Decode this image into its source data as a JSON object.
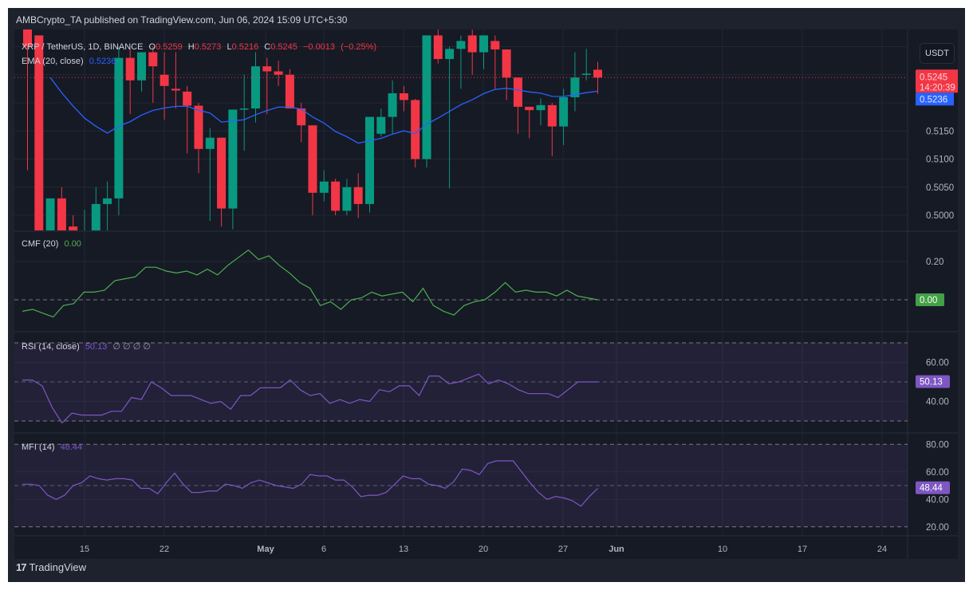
{
  "header": {
    "published": "AMBCrypto_TA published on TradingView.com, Jun 06, 2024 15:09 UTC+5:30"
  },
  "symbol": {
    "title": "XRP / TetherUS, 1D, BINANCE",
    "o_label": "O",
    "o": "0.5259",
    "h_label": "H",
    "h": "0.5273",
    "l_label": "L",
    "l": "0.5216",
    "c_label": "C",
    "c": "0.5245",
    "change": "−0.0013",
    "change_pct": "(−0.25%)"
  },
  "ema": {
    "label": "EMA (20, close)",
    "value": "0.5236"
  },
  "currency_button": "USDT",
  "price_axis": {
    "labels": [
      "0.5150",
      "0.5100",
      "0.5050",
      "0.5000"
    ],
    "last_price": "0.5245",
    "countdown": "14:20:39",
    "ema_tag": "0.5236"
  },
  "cmf": {
    "label": "CMF (20)",
    "value": "0.00",
    "axis": [
      "0.20"
    ],
    "tag": "0.00"
  },
  "rsi": {
    "label": "RSI (14, close)",
    "value": "50.13",
    "extras": "∅ ∅ ∅ ∅",
    "axis": [
      "60.00",
      "40.00"
    ],
    "tag": "50.13"
  },
  "mfi": {
    "label": "MFI (14)",
    "value": "48.44",
    "axis": [
      "80.00",
      "60.00",
      "40.00",
      "20.00"
    ],
    "tag": "48.44"
  },
  "time_axis": [
    "15",
    "22",
    "May",
    "6",
    "13",
    "20",
    "27",
    "Jun",
    "10",
    "17",
    "24"
  ],
  "footer": {
    "brand": "TradingView",
    "logo": "17"
  },
  "colors": {
    "up": "#089981",
    "down": "#f23645",
    "ema": "#2962ff",
    "cmf": "#4caf50",
    "rsi": "#7e57c2",
    "mfi": "#7e57c2",
    "bg": "#161a25",
    "grid": "#232733"
  },
  "chart_data": [
    {
      "type": "candlestick",
      "title": "XRP / TetherUS, 1D, BINANCE",
      "xlabel": "",
      "ylabel": "USDT",
      "ylim": [
        0.4975,
        0.531
      ],
      "x_ticks": [
        "15",
        "22",
        "May",
        "6",
        "13",
        "20",
        "27",
        "Jun",
        "10",
        "17",
        "24"
      ],
      "start_date": "2024-04-10",
      "candles": [
        {
          "o": 0.544,
          "h": 0.547,
          "l": 0.508,
          "c": 0.53
        },
        {
          "o": 0.532,
          "h": 0.53,
          "l": 0.496,
          "c": 0.496
        },
        {
          "o": 0.496,
          "h": 0.503,
          "l": 0.496,
          "c": 0.503
        },
        {
          "o": 0.503,
          "h": 0.505,
          "l": 0.496,
          "c": 0.496
        },
        {
          "o": 0.498,
          "h": 0.5,
          "l": 0.496,
          "c": 0.497
        },
        {
          "o": 0.497,
          "h": 0.501,
          "l": 0.496,
          "c": 0.497
        },
        {
          "o": 0.497,
          "h": 0.505,
          "l": 0.496,
          "c": 0.502
        },
        {
          "o": 0.502,
          "h": 0.506,
          "l": 0.497,
          "c": 0.503
        },
        {
          "o": 0.503,
          "h": 0.53,
          "l": 0.5,
          "c": 0.528
        },
        {
          "o": 0.528,
          "h": 0.5295,
          "l": 0.518,
          "c": 0.524
        },
        {
          "o": 0.524,
          "h": 0.529,
          "l": 0.522,
          "c": 0.529
        },
        {
          "o": 0.529,
          "h": 0.53,
          "l": 0.52,
          "c": 0.5265
        },
        {
          "o": 0.525,
          "h": 0.529,
          "l": 0.517,
          "c": 0.523
        },
        {
          "o": 0.5225,
          "h": 0.529,
          "l": 0.519,
          "c": 0.5222
        },
        {
          "o": 0.522,
          "h": 0.523,
          "l": 0.511,
          "c": 0.5195
        },
        {
          "o": 0.5195,
          "h": 0.52,
          "l": 0.5075,
          "c": 0.5118
        },
        {
          "o": 0.5118,
          "h": 0.5155,
          "l": 0.499,
          "c": 0.5138
        },
        {
          "o": 0.5138,
          "h": 0.512,
          "l": 0.498,
          "c": 0.5012
        },
        {
          "o": 0.5012,
          "h": 0.518,
          "l": 0.4975,
          "c": 0.5188
        },
        {
          "o": 0.5188,
          "h": 0.525,
          "l": 0.5115,
          "c": 0.519
        },
        {
          "o": 0.519,
          "h": 0.529,
          "l": 0.5165,
          "c": 0.5265
        },
        {
          "o": 0.5265,
          "h": 0.528,
          "l": 0.518,
          "c": 0.5256
        },
        {
          "o": 0.5256,
          "h": 0.5275,
          "l": 0.523,
          "c": 0.525
        },
        {
          "o": 0.525,
          "h": 0.526,
          "l": 0.519,
          "c": 0.519
        },
        {
          "o": 0.519,
          "h": 0.52,
          "l": 0.513,
          "c": 0.516
        },
        {
          "o": 0.516,
          "h": 0.516,
          "l": 0.5,
          "c": 0.504
        },
        {
          "o": 0.504,
          "h": 0.508,
          "l": 0.5025,
          "c": 0.506
        },
        {
          "o": 0.506,
          "h": 0.5065,
          "l": 0.5,
          "c": 0.5008
        },
        {
          "o": 0.5008,
          "h": 0.5065,
          "l": 0.5,
          "c": 0.505
        },
        {
          "o": 0.505,
          "h": 0.5075,
          "l": 0.4995,
          "c": 0.502
        },
        {
          "o": 0.502,
          "h": 0.5175,
          "l": 0.5005,
          "c": 0.5175
        },
        {
          "o": 0.5145,
          "h": 0.519,
          "l": 0.514,
          "c": 0.5175
        },
        {
          "o": 0.5175,
          "h": 0.524,
          "l": 0.5145,
          "c": 0.5217
        },
        {
          "o": 0.5217,
          "h": 0.523,
          "l": 0.5185,
          "c": 0.5205
        },
        {
          "o": 0.5205,
          "h": 0.5207,
          "l": 0.5085,
          "c": 0.51
        },
        {
          "o": 0.51,
          "h": 0.532,
          "l": 0.5085,
          "c": 0.532
        },
        {
          "o": 0.532,
          "h": 0.534,
          "l": 0.527,
          "c": 0.5278
        },
        {
          "o": 0.5278,
          "h": 0.53,
          "l": 0.5048,
          "c": 0.5296
        },
        {
          "o": 0.5296,
          "h": 0.532,
          "l": 0.5225,
          "c": 0.531
        },
        {
          "o": 0.532,
          "h": 0.533,
          "l": 0.525,
          "c": 0.529
        },
        {
          "o": 0.529,
          "h": 0.532,
          "l": 0.526,
          "c": 0.532
        },
        {
          "o": 0.531,
          "h": 0.532,
          "l": 0.5225,
          "c": 0.5295
        },
        {
          "o": 0.5295,
          "h": 0.529,
          "l": 0.5205,
          "c": 0.5245
        },
        {
          "o": 0.5245,
          "h": 0.524,
          "l": 0.5145,
          "c": 0.5193
        },
        {
          "o": 0.5193,
          "h": 0.5155,
          "l": 0.5137,
          "c": 0.5187
        },
        {
          "o": 0.5187,
          "h": 0.5208,
          "l": 0.516,
          "c": 0.5196
        },
        {
          "o": 0.5196,
          "h": 0.52,
          "l": 0.5105,
          "c": 0.5158
        },
        {
          "o": 0.5158,
          "h": 0.5225,
          "l": 0.5125,
          "c": 0.521
        },
        {
          "o": 0.521,
          "h": 0.529,
          "l": 0.5185,
          "c": 0.5245
        },
        {
          "o": 0.525,
          "h": 0.5296,
          "l": 0.524,
          "c": 0.5252
        },
        {
          "o": 0.5259,
          "h": 0.5273,
          "l": 0.5216,
          "c": 0.5245
        }
      ],
      "ema20": {
        "name": "EMA (20, close)",
        "color": "#2962ff",
        "last": 0.5236
      }
    },
    {
      "type": "line",
      "title": "CMF (20)",
      "ylim": [
        -0.12,
        0.28
      ],
      "y_ticks": [
        0.2,
        0.0
      ],
      "values": [
        -0.06,
        -0.05,
        -0.07,
        -0.09,
        -0.03,
        -0.02,
        0.04,
        0.04,
        0.05,
        0.1,
        0.11,
        0.12,
        0.17,
        0.17,
        0.15,
        0.14,
        0.15,
        0.13,
        0.16,
        0.13,
        0.18,
        0.22,
        0.26,
        0.21,
        0.23,
        0.18,
        0.14,
        0.09,
        0.06,
        -0.03,
        -0.01,
        -0.05,
        0.0,
        0.01,
        0.04,
        0.02,
        0.03,
        0.04,
        -0.01,
        0.06,
        -0.03,
        -0.06,
        -0.08,
        -0.03,
        -0.01,
        0.0,
        0.04,
        0.09,
        0.04,
        0.05,
        0.04,
        0.04,
        0.02,
        0.05,
        0.02,
        0.01,
        0.0
      ],
      "last": 0.0,
      "baseline": 0.0,
      "color": "#4caf50"
    },
    {
      "type": "line",
      "title": "RSI (14, close)",
      "ylim": [
        25,
        72
      ],
      "y_ticks": [
        60,
        40
      ],
      "bands": [
        70,
        50,
        30
      ],
      "values": [
        51,
        51,
        48,
        37,
        29,
        34,
        33,
        33,
        33,
        35,
        35,
        42,
        41,
        50,
        47,
        43,
        43,
        43,
        41,
        39,
        40,
        36,
        43,
        43,
        47,
        47,
        47,
        51,
        46,
        43,
        44,
        39,
        41,
        39,
        41,
        40,
        46,
        45,
        48,
        48,
        43,
        53,
        53,
        49,
        50,
        52,
        54,
        49,
        51,
        49,
        46,
        44,
        44,
        44,
        42,
        46,
        50,
        50,
        50
      ],
      "last": 50.13,
      "color": "#7e57c2"
    },
    {
      "type": "line",
      "title": "MFI (14)",
      "ylim": [
        15,
        82
      ],
      "y_ticks": [
        80,
        60,
        40,
        20
      ],
      "bands": [
        80,
        50,
        20
      ],
      "values": [
        51,
        51,
        50,
        43,
        40,
        43,
        50,
        52,
        57,
        55,
        54,
        55,
        55,
        54,
        48,
        48,
        44,
        52,
        59,
        51,
        45,
        45,
        46,
        46,
        51,
        50,
        48,
        52,
        54,
        52,
        50,
        49,
        48,
        51,
        58,
        57,
        57,
        54,
        54,
        49,
        42,
        43,
        43,
        45,
        51,
        57,
        55,
        55,
        51,
        50,
        48,
        53,
        62,
        61,
        58,
        66,
        68,
        68,
        68,
        60,
        52,
        45,
        40,
        42,
        41,
        39,
        35,
        42,
        48
      ],
      "last": 48.44,
      "color": "#7e57c2"
    }
  ]
}
